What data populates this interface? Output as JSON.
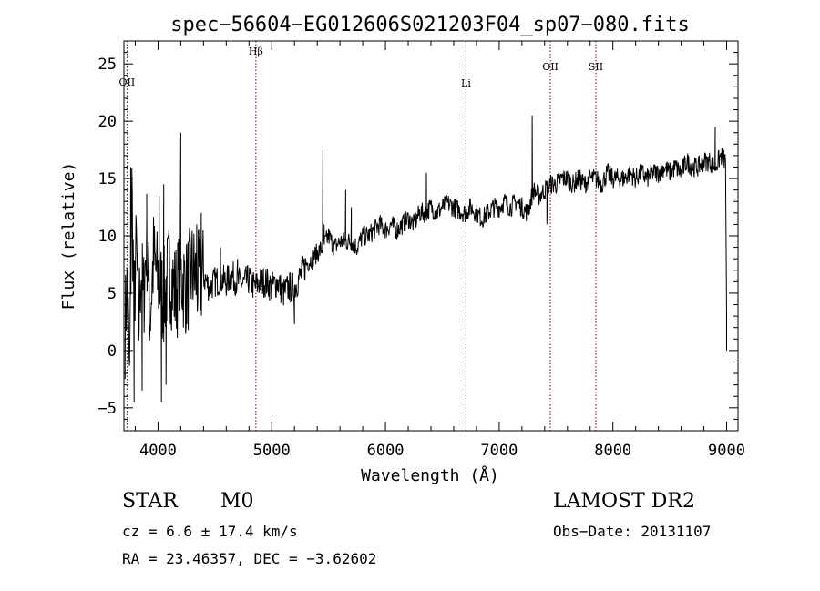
{
  "chart_data": {
    "type": "line",
    "title": "spec−56604−EG012606S021203F04_sp07−080.fits",
    "xlabel": "Wavelength (Å)",
    "ylabel": "Flux (relative)",
    "xlim": [
      3700,
      9100
    ],
    "ylim": [
      -7,
      27
    ],
    "xticks": [
      4000,
      5000,
      6000,
      7000,
      8000,
      9000
    ],
    "xtick_labels": [
      "4000",
      "5000",
      "6000",
      "7000",
      "8000",
      "9000"
    ],
    "yticks": [
      -5,
      0,
      5,
      10,
      15,
      20,
      25
    ],
    "ytick_labels": [
      "−5",
      "0",
      "5",
      "10",
      "15",
      "20",
      "25"
    ],
    "grid": false,
    "lines": [
      {
        "label": "OII",
        "x": 3727
      },
      {
        "label": "Hβ",
        "x": 4861
      },
      {
        "label": "Li",
        "x": 6708
      },
      {
        "label": "OII",
        "x": 7450
      },
      {
        "label": "SII",
        "x": 7850
      }
    ],
    "series": [
      {
        "x": [
          3710,
          3730,
          3750,
          3770,
          3790,
          3810,
          3830,
          3850,
          3870,
          3900,
          3930,
          3960,
          4000,
          4050,
          4100,
          4150,
          4200,
          4250,
          4300,
          4350,
          4400,
          4450,
          4500,
          4550,
          4600,
          4650,
          4700,
          4750,
          4800,
          4850,
          4900,
          4950,
          5000,
          5050,
          5100,
          5150,
          5200,
          5250,
          5300,
          5350,
          5400,
          5450,
          5500,
          5550,
          5600,
          5650,
          5700,
          5750,
          5800,
          5850,
          5900,
          5950,
          6000,
          6050,
          6100,
          6150,
          6200,
          6250,
          6300,
          6350,
          6400,
          6450,
          6500,
          6550,
          6600,
          6650,
          6700,
          6750,
          6800,
          6850,
          6900,
          6950,
          7000,
          7050,
          7100,
          7150,
          7200,
          7250,
          7300,
          7350,
          7400,
          7450,
          7500,
          7550,
          7600,
          7650,
          7700,
          7750,
          7800,
          7850,
          7900,
          7950,
          8000,
          8050,
          8100,
          8150,
          8200,
          8250,
          8300,
          8350,
          8400,
          8450,
          8500,
          8550,
          8600,
          8650,
          8700,
          8750,
          8800,
          8850,
          8900,
          8950,
          8990
        ],
        "y": [
          2.0,
          6.0,
          -3.0,
          14.0,
          4.0,
          9.0,
          2.0,
          7.5,
          4.0,
          10.0,
          3.0,
          8.0,
          6.0,
          4.5,
          7.0,
          5.0,
          6.5,
          5.5,
          7.0,
          6.0,
          6.5,
          5.5,
          6.0,
          6.2,
          6.0,
          6.5,
          6.0,
          5.8,
          6.2,
          5.5,
          6.0,
          6.0,
          5.5,
          6.0,
          5.0,
          5.5,
          5.5,
          6.5,
          7.5,
          8.0,
          8.5,
          9.0,
          10.0,
          9.0,
          9.5,
          9.5,
          9.5,
          9.0,
          10.0,
          10.0,
          10.5,
          11.0,
          10.5,
          11.0,
          10.5,
          11.0,
          11.5,
          11.0,
          12.0,
          12.0,
          12.5,
          12.0,
          12.5,
          12.8,
          12.5,
          12.2,
          12.0,
          12.5,
          12.0,
          11.5,
          12.0,
          12.5,
          12.5,
          13.0,
          12.5,
          13.0,
          12.5,
          12.0,
          14.0,
          13.5,
          14.0,
          14.5,
          14.5,
          15.0,
          15.0,
          14.5,
          15.0,
          14.5,
          15.0,
          15.0,
          14.5,
          15.5,
          15.0,
          15.0,
          15.0,
          15.5,
          15.0,
          15.5,
          15.0,
          15.5,
          15.5,
          16.0,
          15.5,
          16.0,
          15.5,
          16.5,
          16.0,
          16.0,
          16.5,
          16.5,
          16.0,
          17.0,
          16.5
        ]
      }
    ],
    "spikes": [
      {
        "x": 3760,
        "y": 16
      },
      {
        "x": 3790,
        "y": -4.5
      },
      {
        "x": 3860,
        "y": -3.5
      },
      {
        "x": 3900,
        "y": 11.5
      },
      {
        "x": 4010,
        "y": 13.5
      },
      {
        "x": 4030,
        "y": -4.5
      },
      {
        "x": 4050,
        "y": 14.5
      },
      {
        "x": 4070,
        "y": -3
      },
      {
        "x": 4200,
        "y": 19
      },
      {
        "x": 4250,
        "y": 9
      },
      {
        "x": 4340,
        "y": 11
      },
      {
        "x": 4380,
        "y": 12
      },
      {
        "x": 4550,
        "y": 9
      },
      {
        "x": 4700,
        "y": 8
      },
      {
        "x": 5200,
        "y": 2.3
      },
      {
        "x": 5450,
        "y": 17.5
      },
      {
        "x": 5460,
        "y": 11
      },
      {
        "x": 5650,
        "y": 14
      },
      {
        "x": 5700,
        "y": 12.5
      },
      {
        "x": 6360,
        "y": 15.5
      },
      {
        "x": 7290,
        "y": 20.5
      },
      {
        "x": 7420,
        "y": 11
      },
      {
        "x": 8900,
        "y": 19.5
      }
    ]
  },
  "info": {
    "object_class": "STAR",
    "subclass": "M0",
    "survey": "LAMOST DR2",
    "cz": "cz = 6.6 ± 17.4 km/s",
    "obs_date": "Obs−Date: 20131107",
    "coords": "RA =  23.46357, DEC =  −3.62602"
  }
}
